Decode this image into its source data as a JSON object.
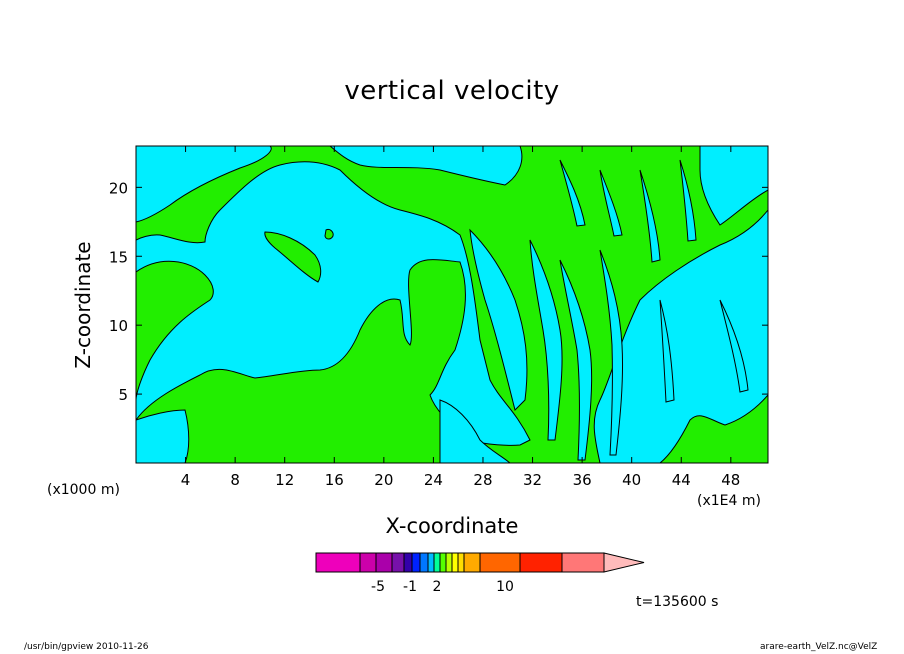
{
  "title": "vertical velocity",
  "footer": {
    "left": "/usr/bin/gpview   2010-11-26",
    "right": "arare-earth_VelZ.nc@VelZ"
  },
  "time_label": "t=135600 s",
  "chart_data": {
    "type": "heatmap",
    "title": "vertical velocity",
    "xlabel": "X-coordinate",
    "ylabel": "Z-coordinate",
    "x_unit_left": "(x1000 m)",
    "x_unit_right": "(x1E4 m)",
    "xlim": [
      0,
      51
    ],
    "ylim": [
      0,
      23
    ],
    "x_ticks": [
      4,
      8,
      12,
      16,
      20,
      24,
      28,
      32,
      36,
      40,
      44,
      48
    ],
    "y_ticks": [
      5,
      10,
      15,
      20
    ],
    "grid": false,
    "colors": {
      "positive": "#22ee00",
      "negative": "#00eeff",
      "contour": "#000000"
    },
    "colorbar": {
      "colors": [
        "#ee00bb",
        "#cc00aa",
        "#aa00aa",
        "#7711aa",
        "#3300aa",
        "#0022ff",
        "#0077ff",
        "#00bbff",
        "#00ff99",
        "#55ff00",
        "#bbff00",
        "#ffff00",
        "#ffdd00",
        "#ffaa00",
        "#ff6600",
        "#ff2200",
        "#ff7777",
        "#ffbbbb"
      ],
      "labels": [
        "-5",
        "-1",
        "2",
        "10"
      ]
    }
  }
}
